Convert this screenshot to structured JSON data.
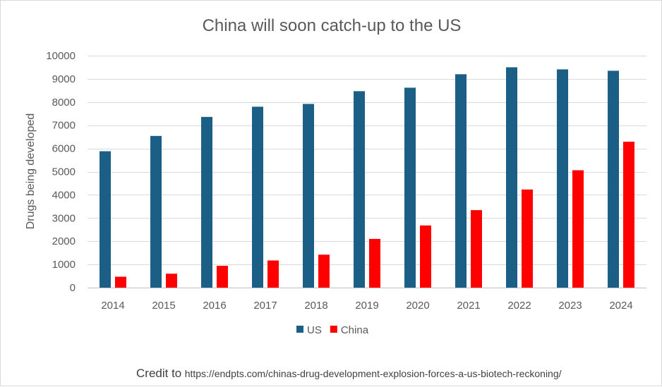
{
  "chart_data": {
    "type": "bar",
    "title": "China will soon catch-up to the US",
    "xlabel": "",
    "ylabel": "Drugs being developed",
    "ylim": [
      0,
      10000
    ],
    "yticks": [
      0,
      1000,
      2000,
      3000,
      4000,
      5000,
      6000,
      7000,
      8000,
      9000,
      10000
    ],
    "categories": [
      "2014",
      "2015",
      "2016",
      "2017",
      "2018",
      "2019",
      "2020",
      "2021",
      "2022",
      "2023",
      "2024"
    ],
    "series": [
      {
        "name": "US",
        "color": "#1b5f86",
        "values": [
          5880,
          6540,
          7360,
          7800,
          7920,
          8470,
          8620,
          9200,
          9500,
          9410,
          9350
        ]
      },
      {
        "name": "China",
        "color": "#ff0000",
        "values": [
          470,
          600,
          940,
          1170,
          1420,
          2100,
          2680,
          3340,
          4230,
          5060,
          6290
        ]
      }
    ],
    "grid": true,
    "legend_position": "bottom"
  },
  "credit": {
    "label": "Credit to",
    "url": "https://endpts.com/chinas-drug-development-explosion-forces-a-us-biotech-reckoning/"
  }
}
